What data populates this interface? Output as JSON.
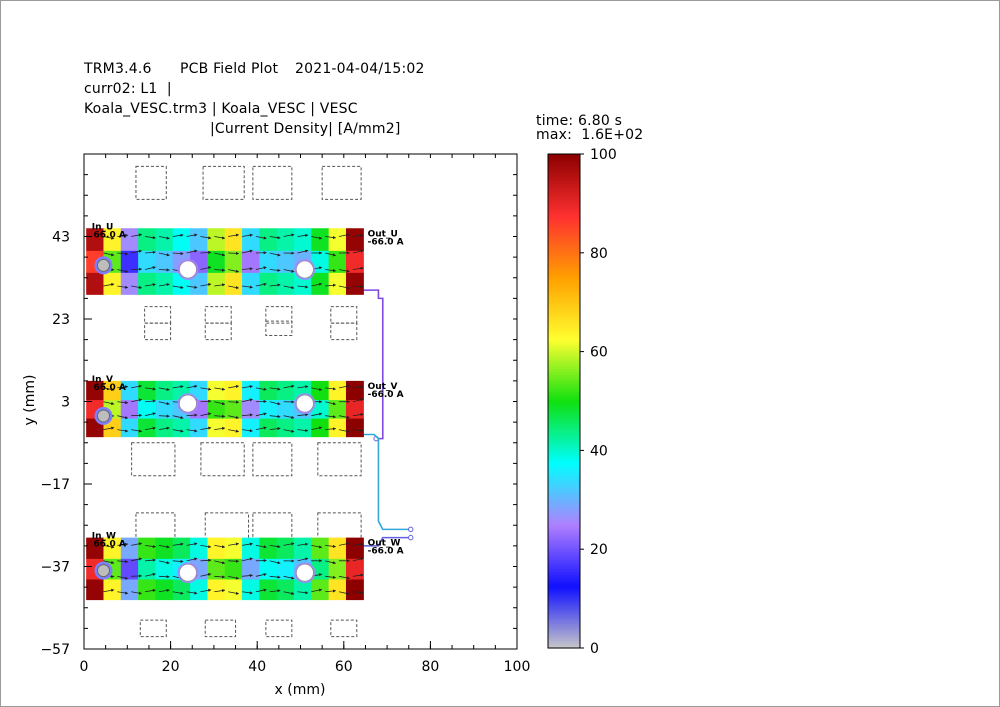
{
  "header": {
    "app": "TRM3.4.6",
    "plot_name": "PCB Field Plot",
    "timestamp": "2021-04-04/15:02",
    "layer": "curr02: L1  |",
    "file_line": "Koala_VESC.trm3 | Koala_VESC | VESC",
    "quantity": "|Current Density| [A/mm2]"
  },
  "info": {
    "time_label": "time: 6.80 s",
    "max_label": "max:  1.6E+02"
  },
  "chart_data": {
    "type": "heatmap",
    "title": "|Current Density| [A/mm2]",
    "xlabel": "x (mm)",
    "ylabel": "y (mm)",
    "xlim": [
      0,
      100
    ],
    "ylim": [
      -57,
      63
    ],
    "x_ticks": [
      0,
      20,
      40,
      60,
      80,
      100
    ],
    "y_ticks": [
      43,
      23,
      3,
      -17,
      -37,
      -57
    ],
    "colorbar": {
      "range": [
        0,
        100
      ],
      "ticks": [
        0,
        20,
        40,
        60,
        80,
        100
      ],
      "stops": [
        "#c8c8c8",
        "#1010ff",
        "#b080ff",
        "#00ffff",
        "#10e010",
        "#ffff30",
        "#ffa000",
        "#ff3030",
        "#8c0000"
      ]
    },
    "traces": [
      {
        "name": "U",
        "y_range": [
          29,
          45
        ],
        "x_range": [
          0.5,
          64.5
        ],
        "in_label": "In_U",
        "in_current": "66.0 A",
        "out_label": "Out_U",
        "out_current": "-66.0 A",
        "holes": [
          [
            4.5,
            36
          ],
          [
            24,
            35
          ],
          [
            51,
            35
          ]
        ],
        "density": [
          92,
          60,
          22,
          40,
          38,
          34,
          28,
          55,
          62,
          30,
          40,
          38,
          36,
          45,
          58,
          95
        ]
      },
      {
        "name": "V",
        "y_range": [
          -5.5,
          8
        ],
        "x_range": [
          0.5,
          64.5
        ],
        "in_label": "In_V",
        "in_current": "66.0 A",
        "out_label": "Out_V",
        "out_current": "-66.0 A",
        "holes": [
          [
            4.5,
            -0.5
          ],
          [
            24,
            2.5
          ],
          [
            51,
            2.5
          ]
        ],
        "density": [
          95,
          65,
          30,
          44,
          40,
          38,
          30,
          58,
          60,
          32,
          42,
          40,
          38,
          46,
          60,
          96
        ]
      },
      {
        "name": "W",
        "y_range": [
          -45,
          -30
        ],
        "x_range": [
          0.5,
          64.5
        ],
        "in_label": "In_W",
        "in_current": "66.0 A",
        "out_label": "Out_W",
        "out_current": "-66.0 A",
        "holes": [
          [
            4.5,
            -38
          ],
          [
            24,
            -38.5
          ],
          [
            51,
            -38.5
          ]
        ],
        "density": [
          95,
          60,
          25,
          48,
          45,
          42,
          35,
          60,
          58,
          35,
          44,
          42,
          38,
          50,
          62,
          96
        ]
      }
    ],
    "pads": [
      [
        12,
        19,
        52,
        60
      ],
      [
        27.5,
        37,
        52,
        60
      ],
      [
        39,
        48,
        52,
        60
      ],
      [
        55,
        64,
        52,
        60
      ],
      [
        14,
        20,
        22,
        26
      ],
      [
        28,
        34,
        22,
        26
      ],
      [
        42,
        48,
        22,
        26
      ],
      [
        57,
        63,
        22,
        26
      ],
      [
        14,
        20,
        18,
        22
      ],
      [
        28,
        34,
        18,
        22
      ],
      [
        42,
        48,
        19,
        22.5
      ],
      [
        57,
        63,
        18,
        22
      ],
      [
        11,
        21,
        -15,
        -7
      ],
      [
        27,
        37,
        -15,
        -7
      ],
      [
        39,
        48,
        -15,
        -7
      ],
      [
        54,
        64,
        -15,
        -7
      ],
      [
        12,
        21,
        -32,
        -24
      ],
      [
        28,
        38,
        -32,
        -24
      ],
      [
        39,
        48,
        -32,
        -24
      ],
      [
        54,
        64,
        -32,
        -24
      ],
      [
        13,
        19,
        -54,
        -50
      ],
      [
        28,
        35,
        -54,
        -50
      ],
      [
        42,
        48,
        -54,
        -50
      ],
      [
        57,
        63,
        -54,
        -50
      ]
    ]
  }
}
